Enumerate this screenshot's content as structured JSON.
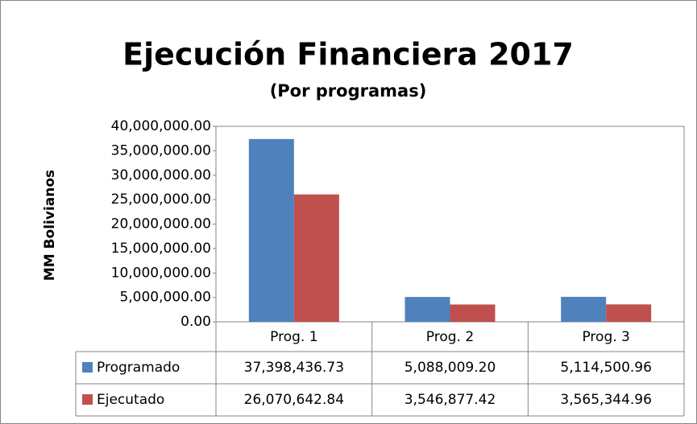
{
  "chart_data": {
    "type": "bar",
    "title": "Ejecución Financiera 2017",
    "subtitle": "(Por programas)",
    "ylabel": "MM Bolivianos",
    "categories": [
      "Prog. 1",
      "Prog. 2",
      "Prog. 3"
    ],
    "series": [
      {
        "name": "Programado",
        "color": "#4f81bd",
        "values": [
          37398436.73,
          5088009.2,
          5114500.96
        ],
        "value_labels": [
          "37,398,436.73",
          "5,088,009.20",
          "5,114,500.96"
        ]
      },
      {
        "name": "Ejecutado",
        "color": "#c0504d",
        "values": [
          26070642.84,
          3546877.42,
          3565344.96
        ],
        "value_labels": [
          "26,070,642.84",
          "3,546,877.42",
          "3,565,344.96"
        ]
      }
    ],
    "ylim": [
      0,
      40000000
    ],
    "yticks": [
      {
        "value": 0,
        "label": "0.00"
      },
      {
        "value": 5000000,
        "label": "5,000,000.00"
      },
      {
        "value": 10000000,
        "label": "10,000,000.00"
      },
      {
        "value": 15000000,
        "label": "15,000,000.00"
      },
      {
        "value": 20000000,
        "label": "20,000,000.00"
      },
      {
        "value": 25000000,
        "label": "25,000,000.00"
      },
      {
        "value": 30000000,
        "label": "30,000,000.00"
      },
      {
        "value": 35000000,
        "label": "35,000,000.00"
      },
      {
        "value": 40000000,
        "label": "40,000,000.00"
      }
    ],
    "grid": false,
    "data_table": true
  }
}
